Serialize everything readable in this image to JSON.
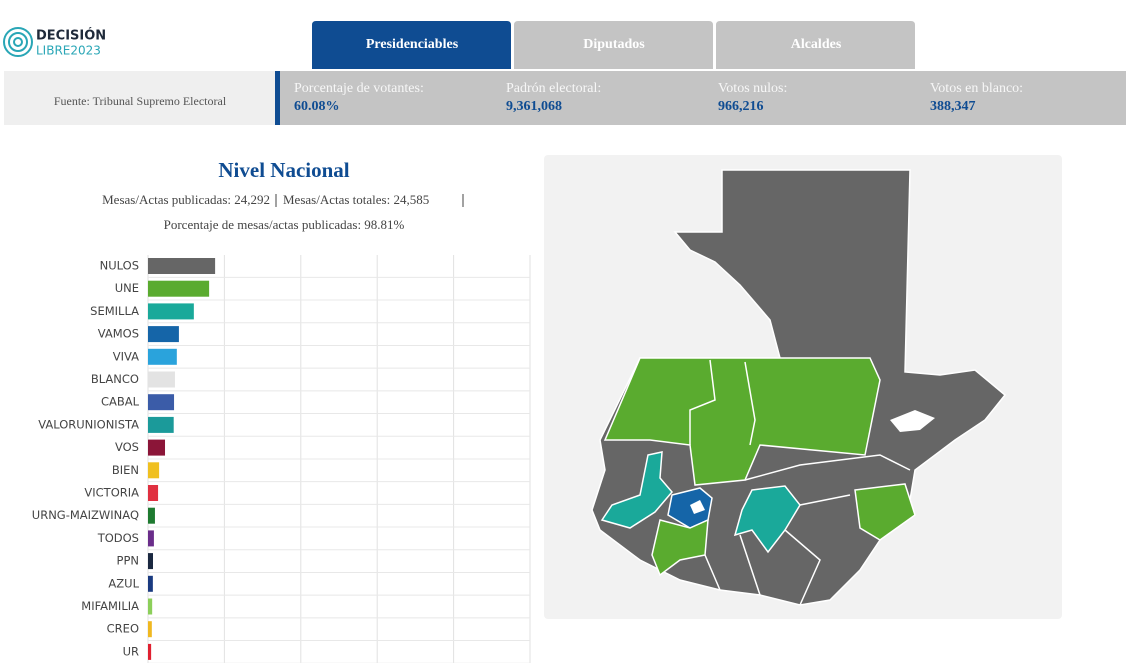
{
  "header": {
    "logo_line1": "DECISIÓN",
    "logo_line2": "LIBRE2023",
    "tabs": [
      "Presidenciables",
      "Diputados",
      "Alcaldes"
    ]
  },
  "stats": {
    "source": "Fuente: Tribunal Supremo Electoral",
    "items": [
      {
        "label": "Porcentaje de votantes:",
        "value": "60.08%"
      },
      {
        "label": "Padrón electoral:",
        "value": "9,361,068"
      },
      {
        "label": "Votos nulos:",
        "value": "966,216"
      },
      {
        "label": "Votos en blanco:",
        "value": "388,347"
      }
    ]
  },
  "chart_data": {
    "type": "bar",
    "orientation": "horizontal",
    "title": "Nivel Nacional",
    "subtitle_lines": [
      "Mesas/Actas publicadas: 24,292",
      "Mesas/Actas totales: 24,585",
      "Porcentaje de mesas/actas publicadas: 98.81%"
    ],
    "categories": [
      "NULOS",
      "UNE",
      "SEMILLA",
      "VAMOS",
      "VIVA",
      "BLANCO",
      "CABAL",
      "VALORUNIONISTA",
      "VOS",
      "BIEN",
      "VICTORIA",
      "URNG-MAIZWINAQ",
      "TODOS",
      "PPN",
      "AZUL",
      "MIFAMILIA",
      "CREO",
      "UR"
    ],
    "values": [
      966216,
      880000,
      660000,
      445000,
      415000,
      388347,
      375000,
      370000,
      245000,
      160000,
      145000,
      100000,
      85000,
      72000,
      70000,
      60000,
      55000,
      45000
    ],
    "colors": [
      "#666666",
      "#5aab2f",
      "#1aa99a",
      "#1565a8",
      "#2aa3dc",
      "#e3e3e3",
      "#3b5ca8",
      "#1b9a9a",
      "#8b1538",
      "#f0c020",
      "#e03040",
      "#1e7a30",
      "#6a2d8a",
      "#1a2840",
      "#1a3a80",
      "#8ccf5a",
      "#f0b820",
      "#e02030"
    ],
    "xlim": [
      0,
      5500000
    ],
    "xticks": [
      0,
      1100000,
      2200000,
      3300000,
      4400000,
      5500000
    ],
    "grid": true
  }
}
